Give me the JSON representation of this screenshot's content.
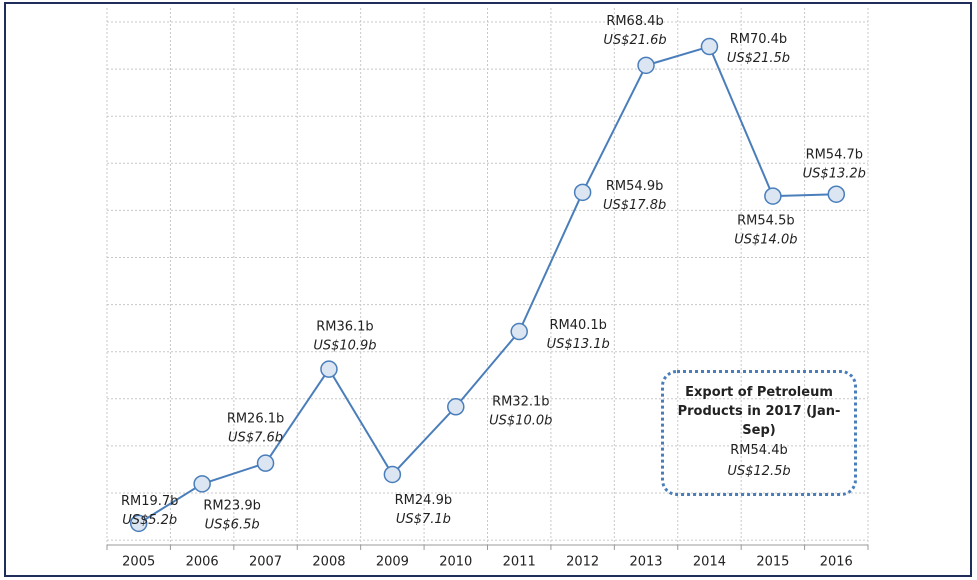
{
  "chart_data": {
    "type": "line",
    "categories": [
      "2005",
      "2006",
      "2007",
      "2008",
      "2009",
      "2010",
      "2011",
      "2012",
      "2013",
      "2014",
      "2015",
      "2016"
    ],
    "series": [
      {
        "color": "#4a7ebb",
        "values": [
          19.7,
          23.9,
          26.1,
          36.1,
          24.9,
          32.1,
          40.1,
          54.9,
          68.4,
          70.4,
          54.5,
          54.7
        ],
        "value_labels": [
          "RM19.7b",
          "RM23.9b",
          "RM26.1b",
          "RM36.1b",
          "RM24.9b",
          "RM32.1b",
          "RM40.1b",
          "RM54.9b",
          "RM68.4b",
          "RM70.4b",
          "RM54.5b",
          "RM54.7b"
        ],
        "usd_labels": [
          "US$5.2b",
          "US$6.5b",
          "US$7.6b",
          "US$10.9b",
          "US$7.1b",
          "US$10.0b",
          "US$13.1b",
          "US$17.8b",
          "US$21.6b",
          "US$21.5b",
          "US$14.0b",
          "US$13.2b"
        ]
      }
    ],
    "ylim": [
      17.4,
      74.5
    ],
    "grid": true,
    "annotation": {
      "title": "Export of Petroleum Products in 2017 (Jan-Sep)",
      "lines": [
        "RM54.4b",
        "US$12.5b"
      ]
    }
  }
}
